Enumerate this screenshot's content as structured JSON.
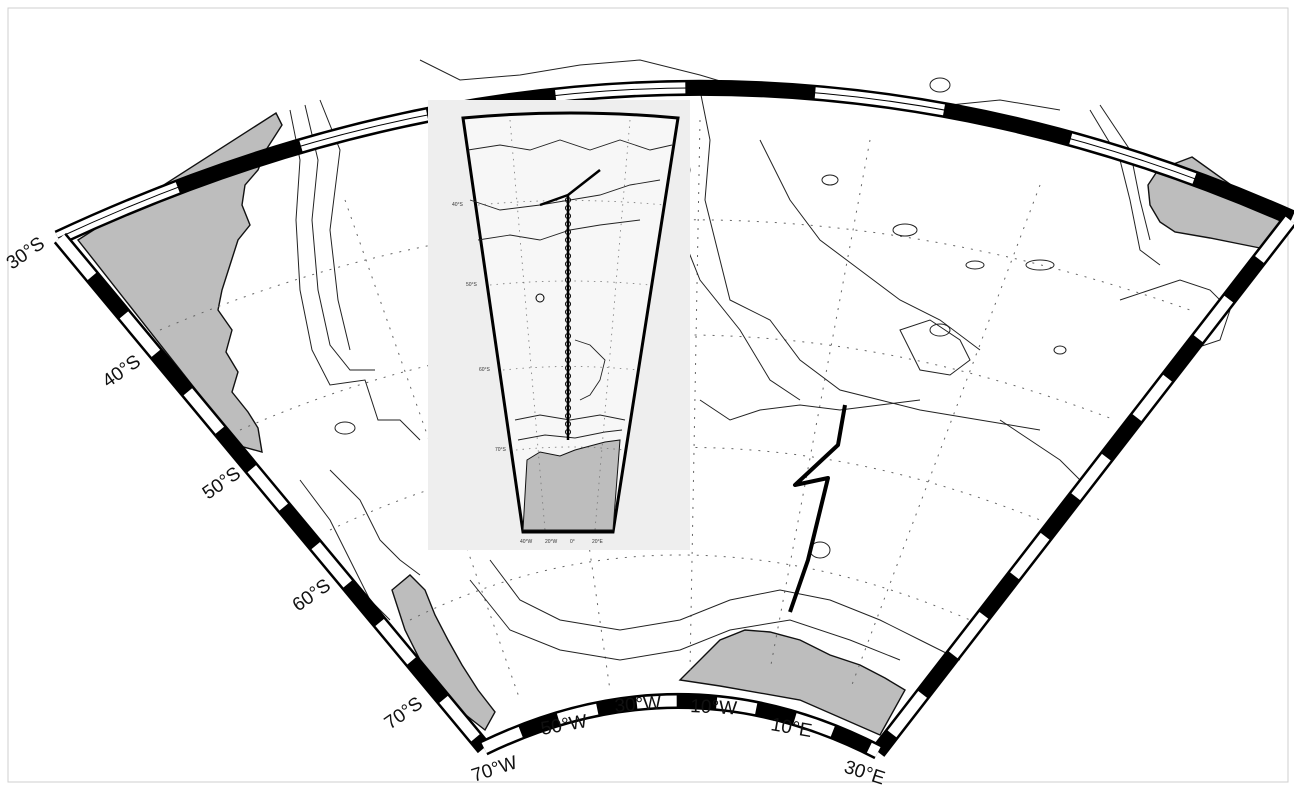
{
  "map": {
    "colors": {
      "land": "#bdbdbd",
      "contour": "#222222",
      "frame_dark": "#000000",
      "frame_light": "#ffffff",
      "inset_bg": "#eeeeee",
      "track": "#000000"
    },
    "latitude_labels": [
      "30°S",
      "40°S",
      "50°S",
      "60°S",
      "70°S"
    ],
    "longitude_labels": [
      "70°W",
      "50°W",
      "30°W",
      "10°W",
      "10°E",
      "30°E"
    ],
    "inset": {
      "left_labels": [
        "40°S",
        "50°S",
        "60°S",
        "70°S"
      ],
      "bottom_labels": [
        "40°W",
        "20°W",
        "0°",
        "20°E"
      ],
      "station_count": 30
    }
  }
}
